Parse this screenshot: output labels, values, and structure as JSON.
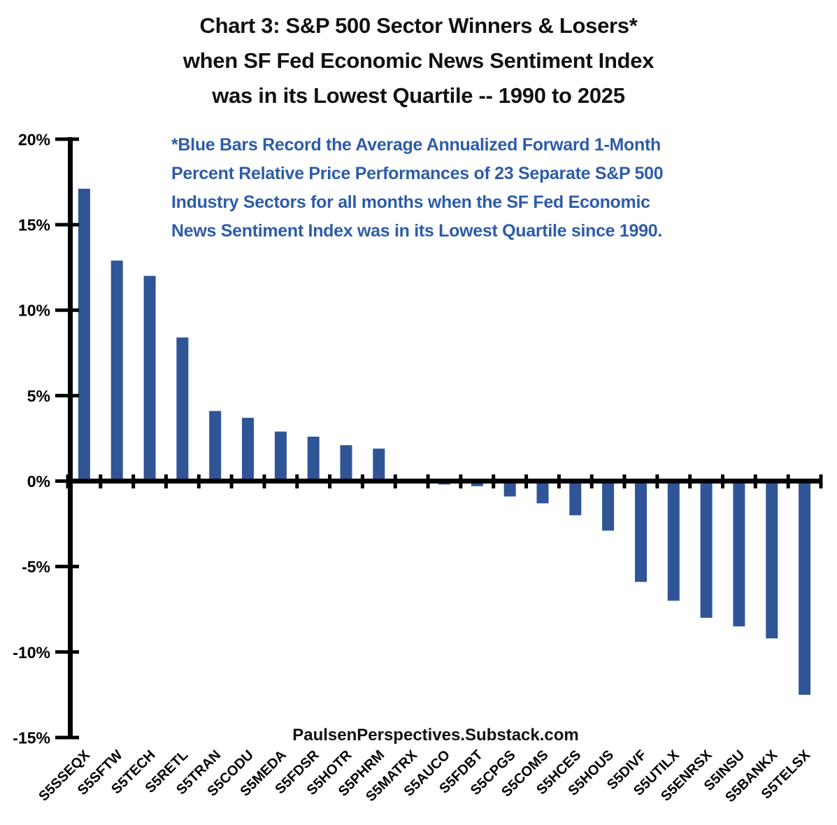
{
  "title": "Chart 3: S&P 500 Sector Winners & Losers*\nwhen SF Fed Economic News Sentiment Index\nwas in its Lowest Quartile -- 1990 to 2025",
  "annotation": "*Blue Bars Record the Average Annualized Forward 1-Month\nPercent Relative Price Performances of 23 Separate S&P 500\nIndustry Sectors for all months when the SF Fed Economic\nNews Sentiment Index was in its Lowest Quartile since 1990.",
  "footer": "PaulsenPerspectives.Substack.com",
  "colors": {
    "bar": "#2F5597",
    "annotation_text": "#2E5CA8",
    "axis": "#000000",
    "title_text": "#111111"
  },
  "chart_data": {
    "type": "bar",
    "title": "Chart 3: S&P 500 Sector Winners & Losers* when SF Fed Economic News Sentiment Index was in its Lowest Quartile -- 1990 to 2025",
    "categories": [
      "S5SSEQX",
      "S5SFTW",
      "S5TECH",
      "S5RETL",
      "S5TRAN",
      "S5CODU",
      "S5MEDA",
      "S5FDSR",
      "S5HOTR",
      "S5PHRM",
      "S5MATRX",
      "S5AUCO",
      "S5FDBT",
      "S5CPGS",
      "S5COMS",
      "S5HCES",
      "S5HOUS",
      "S5DIVF",
      "S5UTILX",
      "S5ENRSX",
      "S5INSU",
      "S5BANKX",
      "S5TELSX"
    ],
    "values": [
      17.1,
      12.9,
      12.0,
      8.4,
      4.1,
      3.7,
      2.9,
      2.6,
      2.1,
      1.9,
      -0.1,
      -0.2,
      -0.3,
      -0.9,
      -1.3,
      -2.0,
      -2.9,
      -5.9,
      -7.0,
      -8.0,
      -8.5,
      -9.2,
      -12.5
    ],
    "units": "percent",
    "y_axis": {
      "ticks": [
        20,
        15,
        10,
        5,
        0,
        -5,
        -10,
        -15
      ],
      "labels": [
        "20%",
        "15%",
        "10%",
        "5%",
        "0%",
        "-5%",
        "-10%",
        "-15%"
      ],
      "ylim": [
        -15,
        20
      ]
    },
    "grid": false,
    "legend": false,
    "xlabel": "",
    "ylabel": ""
  }
}
